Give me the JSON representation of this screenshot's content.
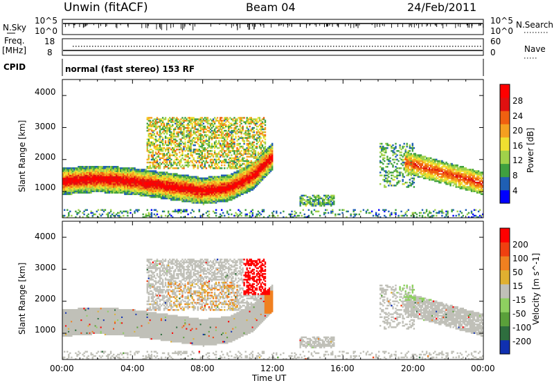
{
  "header": {
    "station": "Unwin (fitACF)",
    "beam": "Beam 04",
    "date": "24/Feb/2011"
  },
  "aux_panels": {
    "sky_label": "N.Sky",
    "search_label": "N.Search",
    "sky_ticks": [
      "10^5",
      "10^0"
    ],
    "search_ticks": [
      "10^5",
      "10^0"
    ],
    "freq_label_1": "Freq.",
    "freq_label_2": "[MHz]",
    "freq_ticks": [
      "18",
      "8"
    ],
    "nave_label": "Nave",
    "nave_ticks": [
      "60",
      "0"
    ],
    "cpid_label": "CPID",
    "cpid_text": "normal (fast stereo) 153 RF"
  },
  "chart_data": [
    {
      "type": "heatmap",
      "quantity": "Power",
      "ylabel": "Slant Range [km]",
      "yticks": [
        "4000",
        "3000",
        "2000",
        "1000"
      ],
      "ylim": [
        180,
        4500
      ],
      "xlim": [
        0,
        24
      ],
      "colorbar_label": "Power [dB]",
      "colorbar_ticks": [
        "28",
        "24",
        "20",
        "16",
        "12",
        "8",
        "4"
      ],
      "colormap": [
        "#0000ff",
        "#1f5fb4",
        "#3fa03f",
        "#a0d24a",
        "#f0e030",
        "#f5a020",
        "#f06010",
        "#e01010",
        "#ff0000"
      ],
      "main_band": [
        {
          "t": 0.0,
          "r": 1300
        },
        {
          "t": 2.0,
          "r": 1380
        },
        {
          "t": 4.0,
          "r": 1300
        },
        {
          "t": 6.0,
          "r": 1150
        },
        {
          "t": 8.0,
          "r": 1000
        },
        {
          "t": 9.5,
          "r": 1100
        },
        {
          "t": 10.8,
          "r": 1450
        },
        {
          "t": 12.0,
          "r": 2100
        }
      ]
    },
    {
      "type": "heatmap",
      "quantity": "Velocity",
      "ylabel": "Slant Range [km]",
      "yticks": [
        "4000",
        "3000",
        "2000",
        "1000"
      ],
      "ylim": [
        180,
        4500
      ],
      "xlim": [
        0,
        24
      ],
      "xlabel": "Time UT",
      "xticks": [
        "00:00",
        "04:00",
        "08:00",
        "12:00",
        "16:00",
        "20:00",
        "00:00"
      ],
      "colorbar_label": "Velocity [m s^-1]",
      "colorbar_ticks": [
        "200",
        "100",
        "50",
        "15",
        "-15",
        "-50",
        "-100",
        "-200"
      ],
      "colormap": [
        "#1030b0",
        "#2e6e3e",
        "#5aa03a",
        "#8ed060",
        "#c0c0b8",
        "#e0b030",
        "#f08020",
        "#f04010",
        "#ff0000"
      ],
      "ground_scatter_color": "#c0c0b8"
    }
  ]
}
